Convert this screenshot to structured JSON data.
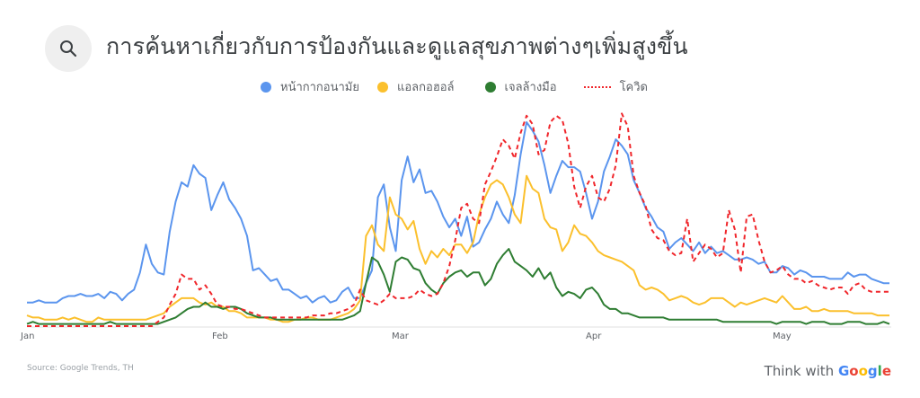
{
  "header": {
    "icon": "search-icon",
    "title": "การค้นหาเกี่ยวกับการป้องกันและดูแลสุขภาพต่างๆเพิ่มสูงขึ้น"
  },
  "legend": [
    {
      "label": "หน้ากากอนามัย",
      "color": "#5b95ee",
      "style": "dot"
    },
    {
      "label": "แอลกอฮอล์",
      "color": "#fbc02d",
      "style": "dot"
    },
    {
      "label": "เจลล้างมือ",
      "color": "#2e7d32",
      "style": "dot"
    },
    {
      "label": "โควิด",
      "color": "#f0262b",
      "style": "dashed"
    }
  ],
  "x_axis": {
    "labels": [
      "Jan",
      "Feb",
      "Mar",
      "Apr",
      "May"
    ]
  },
  "footer": {
    "source": "Source: Google Trends, TH",
    "brand_prefix": "Think with",
    "brand_name": "Google"
  },
  "chart_data": {
    "type": "line",
    "title": "การค้นหาเกี่ยวกับการป้องกันและดูแลสุขภาพต่างๆเพิ่มสูงขึ้น",
    "xlabel": "",
    "ylabel": "",
    "ylim": [
      0,
      100
    ],
    "x_tick_labels": [
      "Jan",
      "Feb",
      "Mar",
      "Apr",
      "May"
    ],
    "grid": false,
    "legend_position": "top",
    "x_note": "approx. daily-sampled index, Jan 1 to mid-May (~140 points, every 2nd day shown)",
    "series": [
      {
        "name": "หน้ากากอนามัย",
        "color": "#5b95ee",
        "values": [
          11,
          11,
          12,
          11,
          11,
          11,
          13,
          14,
          14,
          15,
          14,
          14,
          15,
          13,
          16,
          15,
          12,
          15,
          17,
          25,
          38,
          29,
          25,
          24,
          44,
          58,
          67,
          65,
          75,
          71,
          69,
          54,
          61,
          67,
          59,
          55,
          50,
          42,
          26,
          27,
          24,
          21,
          22,
          17,
          17,
          15,
          13,
          14,
          11,
          13,
          14,
          11,
          12,
          16,
          18,
          13,
          13,
          20,
          26,
          60,
          66,
          46,
          35,
          68,
          79,
          67,
          73,
          62,
          63,
          58,
          51,
          46,
          50,
          42,
          51,
          37,
          39,
          45,
          50,
          58,
          52,
          48,
          61,
          80,
          95,
          91,
          86,
          75,
          62,
          70,
          77,
          74,
          74,
          72,
          62,
          50,
          58,
          72,
          79,
          87,
          84,
          80,
          68,
          62,
          55,
          51,
          46,
          44,
          36,
          39,
          41,
          38,
          35,
          39,
          34,
          37,
          34,
          35,
          33,
          31,
          31,
          32,
          31,
          29,
          30,
          25,
          25,
          28,
          27,
          24,
          26,
          25,
          23,
          23,
          23,
          22,
          22,
          22,
          25,
          23,
          24,
          24,
          22,
          21,
          20,
          20
        ]
      },
      {
        "name": "แอลกอฮอล์",
        "color": "#fbc02d",
        "values": [
          5,
          4,
          4,
          3,
          3,
          3,
          4,
          3,
          4,
          3,
          2,
          2,
          4,
          3,
          3,
          3,
          3,
          3,
          3,
          3,
          3,
          4,
          5,
          6,
          9,
          11,
          13,
          13,
          13,
          11,
          10,
          11,
          9,
          9,
          7,
          7,
          6,
          4,
          4,
          4,
          4,
          3,
          3,
          2,
          2,
          3,
          3,
          4,
          4,
          3,
          3,
          3,
          4,
          5,
          6,
          8,
          12,
          42,
          47,
          38,
          35,
          60,
          52,
          50,
          45,
          49,
          36,
          29,
          35,
          32,
          36,
          33,
          38,
          38,
          34,
          39,
          52,
          60,
          66,
          68,
          66,
          60,
          52,
          48,
          70,
          64,
          62,
          50,
          46,
          45,
          35,
          39,
          47,
          43,
          42,
          39,
          35,
          33,
          32,
          31,
          30,
          28,
          26,
          19,
          17,
          18,
          17,
          15,
          12,
          13,
          14,
          13,
          11,
          10,
          11,
          13,
          13,
          13,
          11,
          9,
          11,
          10,
          11,
          12,
          13,
          12,
          11,
          14,
          11,
          8,
          8,
          9,
          7,
          7,
          8,
          7,
          7,
          7,
          7,
          6,
          6,
          6,
          6,
          5,
          5,
          5
        ]
      },
      {
        "name": "เจลล้างมือ",
        "color": "#2e7d32",
        "values": [
          1,
          2,
          1,
          1,
          1,
          1,
          1,
          1,
          1,
          1,
          1,
          1,
          1,
          1,
          2,
          1,
          1,
          1,
          1,
          1,
          1,
          1,
          1,
          2,
          3,
          4,
          6,
          8,
          9,
          9,
          11,
          9,
          9,
          8,
          9,
          9,
          8,
          6,
          5,
          4,
          4,
          4,
          3,
          3,
          3,
          3,
          3,
          3,
          3,
          3,
          3,
          3,
          3,
          3,
          4,
          5,
          7,
          20,
          32,
          30,
          24,
          16,
          30,
          32,
          31,
          27,
          26,
          20,
          17,
          15,
          20,
          23,
          25,
          26,
          23,
          25,
          25,
          19,
          22,
          29,
          33,
          36,
          30,
          28,
          26,
          23,
          27,
          22,
          25,
          18,
          14,
          16,
          15,
          13,
          17,
          18,
          15,
          10,
          8,
          8,
          6,
          6,
          5,
          4,
          4,
          4,
          4,
          4,
          3,
          3,
          3,
          3,
          3,
          3,
          3,
          3,
          3,
          2,
          2,
          2,
          2,
          2,
          2,
          2,
          2,
          2,
          1,
          2,
          2,
          2,
          2,
          1,
          2,
          2,
          2,
          1,
          1,
          1,
          2,
          2,
          2,
          1,
          1,
          1,
          2,
          1
        ]
      },
      {
        "name": "โควิด",
        "color": "#f0262b",
        "values": [
          0,
          0,
          0,
          0,
          0,
          0,
          0,
          0,
          0,
          0,
          0,
          0,
          0,
          0,
          0,
          0,
          0,
          0,
          0,
          0,
          0,
          0,
          2,
          4,
          10,
          15,
          24,
          22,
          22,
          17,
          19,
          15,
          10,
          9,
          9,
          8,
          8,
          7,
          6,
          5,
          4,
          4,
          4,
          4,
          4,
          4,
          4,
          4,
          5,
          5,
          5,
          6,
          6,
          7,
          8,
          10,
          17,
          12,
          11,
          10,
          12,
          15,
          13,
          13,
          13,
          14,
          17,
          15,
          14,
          15,
          20,
          28,
          40,
          55,
          57,
          50,
          48,
          66,
          72,
          79,
          87,
          84,
          78,
          90,
          98,
          94,
          80,
          82,
          95,
          98,
          96,
          85,
          65,
          55,
          65,
          70,
          60,
          58,
          64,
          75,
          99,
          93,
          70,
          62,
          56,
          45,
          41,
          40,
          35,
          33,
          34,
          50,
          30,
          34,
          38,
          36,
          32,
          34,
          54,
          45,
          25,
          51,
          52,
          40,
          30,
          25,
          26,
          28,
          24,
          22,
          22,
          20,
          21,
          19,
          18,
          17,
          18,
          18,
          15,
          19,
          20,
          17,
          16,
          16,
          16,
          16
        ]
      }
    ]
  }
}
